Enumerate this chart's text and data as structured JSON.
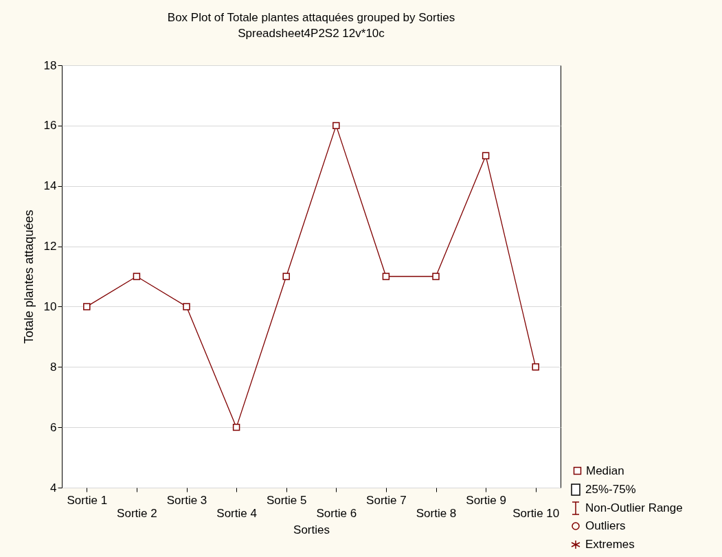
{
  "chart_data": {
    "type": "line",
    "title": "Box Plot of Totale plantes attaquées grouped by  Sorties",
    "subtitle": "Spreadsheet4P2S2 12v*10c",
    "xlabel": "Sorties",
    "ylabel": "Totale plantes attaquées",
    "categories": [
      "Sortie 1",
      "Sortie 2",
      "Sortie 3",
      "Sortie 4",
      "Sortie 5",
      "Sortie 6",
      "Sortie 7",
      "Sortie 8",
      "Sortie 9",
      "Sortie 10"
    ],
    "series": [
      {
        "name": "Median",
        "color": "#800000",
        "values": [
          10,
          11,
          10,
          6,
          11,
          16,
          11,
          11,
          15,
          8
        ]
      }
    ],
    "ylim": [
      4,
      18
    ],
    "yticks": [
      4,
      6,
      8,
      10,
      12,
      14,
      16,
      18
    ],
    "grid": "y",
    "legend": "bottom right",
    "marker": "square",
    "line_style": "solid",
    "annotations": [
      "25%-75%",
      "Non-Outlier Range",
      "Outliers",
      "Extremes"
    ]
  }
}
